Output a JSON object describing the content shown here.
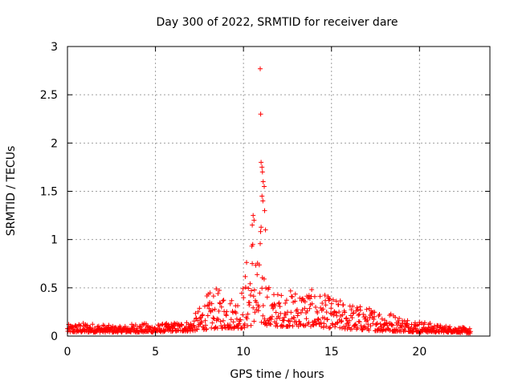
{
  "chart_data": {
    "type": "scatter",
    "title": "Day 300 of 2022, SRMTID for receiver dare",
    "xlabel": "GPS time / hours",
    "ylabel": "SRMTID / TECUs",
    "xlim": [
      0,
      24
    ],
    "ylim": [
      0,
      3
    ],
    "x_ticks": [
      0,
      5,
      10,
      15,
      20
    ],
    "x_tick_labels": [
      "0",
      "5",
      "10",
      "15",
      "20"
    ],
    "y_ticks": [
      0,
      0.5,
      1,
      1.5,
      2,
      2.5,
      3
    ],
    "y_tick_labels": [
      "0",
      "0.5",
      "1",
      "1.5",
      "2",
      "2.5",
      "3"
    ],
    "grid": true,
    "marker": "+",
    "marker_color": "#ff0000",
    "series_envelope": {
      "name": "SRMTID",
      "x_range": [
        0,
        22.9
      ],
      "x": [
        0,
        1,
        2,
        3,
        4,
        5,
        6,
        7,
        7.5,
        8,
        8.5,
        9,
        9.5,
        10,
        10.3,
        10.6,
        10.8,
        11.0,
        11.2,
        11.5,
        12,
        13,
        14,
        15,
        16,
        17,
        18,
        19,
        20,
        21,
        22,
        22.9
      ],
      "y_low": [
        0.04,
        0.04,
        0.04,
        0.04,
        0.04,
        0.04,
        0.05,
        0.05,
        0.06,
        0.07,
        0.08,
        0.08,
        0.08,
        0.08,
        0.1,
        0.12,
        0.12,
        0.12,
        0.12,
        0.1,
        0.1,
        0.1,
        0.1,
        0.08,
        0.07,
        0.06,
        0.05,
        0.05,
        0.04,
        0.04,
        0.04,
        0.03
      ],
      "y_high": [
        0.12,
        0.14,
        0.12,
        0.1,
        0.14,
        0.12,
        0.14,
        0.16,
        0.3,
        0.45,
        0.5,
        0.45,
        0.4,
        0.55,
        1.0,
        1.25,
        0.8,
        1.2,
        0.7,
        0.5,
        0.45,
        0.5,
        0.48,
        0.4,
        0.35,
        0.3,
        0.28,
        0.2,
        0.16,
        0.12,
        0.1,
        0.08
      ]
    },
    "notable_points": [
      {
        "x": 10.95,
        "y": 2.77
      },
      {
        "x": 10.98,
        "y": 2.3
      },
      {
        "x": 11.0,
        "y": 1.8
      },
      {
        "x": 11.05,
        "y": 1.75
      },
      {
        "x": 11.08,
        "y": 1.7
      },
      {
        "x": 11.12,
        "y": 1.6
      },
      {
        "x": 11.18,
        "y": 1.55
      },
      {
        "x": 11.05,
        "y": 1.45
      },
      {
        "x": 11.1,
        "y": 1.4
      },
      {
        "x": 11.2,
        "y": 1.3
      },
      {
        "x": 11.25,
        "y": 1.1
      },
      {
        "x": 10.55,
        "y": 1.25
      },
      {
        "x": 10.6,
        "y": 1.2
      },
      {
        "x": 10.5,
        "y": 1.15
      }
    ]
  }
}
